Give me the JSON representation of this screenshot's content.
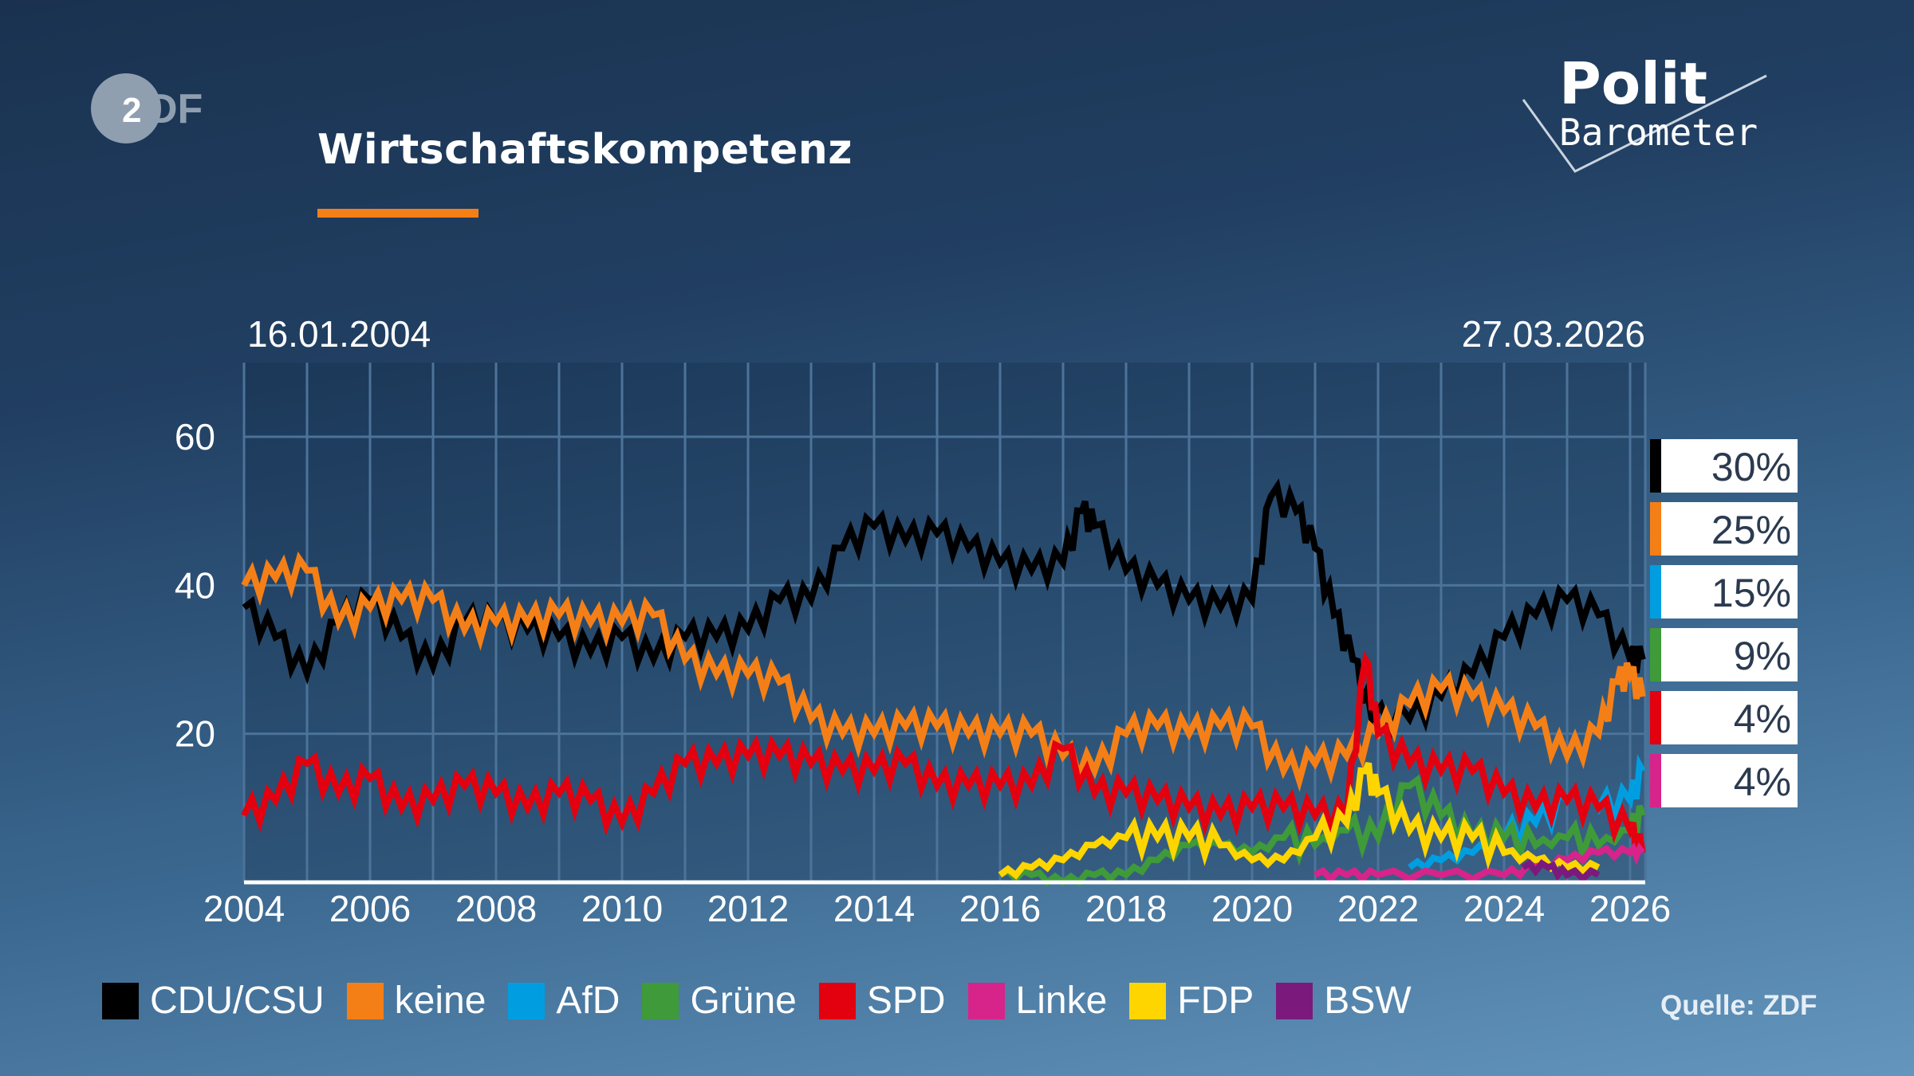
{
  "header": {
    "title": "Wirtschaftskompetenz",
    "brand": "ZDF",
    "program_logo": "PolitBarometer",
    "accent": "#f57f17"
  },
  "dates": {
    "start": "16.01.2004",
    "end": "27.03.2026"
  },
  "latest_values": [
    {
      "party": "CDU/CSU",
      "value": "30%",
      "color": "#000000"
    },
    {
      "party": "keine",
      "value": "25%",
      "color": "#f57f17"
    },
    {
      "party": "AfD",
      "value": "15%",
      "color": "#009ee0"
    },
    {
      "party": "Grüne",
      "value": "9%",
      "color": "#3f9a3a"
    },
    {
      "party": "SPD",
      "value": "4%",
      "color": "#e3000f"
    },
    {
      "party": "Linke",
      "value": "4%",
      "color": "#d6248a"
    }
  ],
  "source": "Quelle: ZDF",
  "chart_data": {
    "type": "line",
    "title": "Wirtschaftskompetenz",
    "xlabel": "",
    "ylabel": "",
    "xlim": [
      2004,
      2026.25
    ],
    "ylim": [
      0,
      75
    ],
    "xticks": [
      "2004",
      "2006",
      "2008",
      "2010",
      "2012",
      "2014",
      "2016",
      "2018",
      "2020",
      "2022",
      "2024",
      "2026"
    ],
    "yticks": [
      "20",
      "40",
      "60"
    ],
    "grid": true,
    "legend": "bottom",
    "series": [
      {
        "name": "CDU/CSU",
        "color": "#000000",
        "x": [
          2004,
          2004.5,
          2005,
          2005.5,
          2006,
          2006.5,
          2007,
          2007.5,
          2008,
          2008.5,
          2009,
          2009.5,
          2010,
          2010.5,
          2011,
          2011.5,
          2012,
          2012.5,
          2013,
          2013.5,
          2014,
          2014.5,
          2015,
          2015.5,
          2016,
          2016.5,
          2017,
          2017.3,
          2017.5,
          2018,
          2018.5,
          2019,
          2019.5,
          2020,
          2020.3,
          2020.7,
          2021,
          2021.3,
          2021.6,
          2021.9,
          2022.5,
          2023,
          2023.5,
          2024,
          2024.5,
          2025,
          2025.5,
          2026,
          2026.2
        ],
        "y": [
          37,
          33,
          28,
          35,
          38,
          33,
          29,
          35,
          35,
          34,
          33,
          31,
          33,
          30,
          33,
          33,
          34,
          38,
          38,
          45,
          48,
          46,
          47,
          45,
          43,
          42,
          43,
          50,
          48,
          42,
          40,
          38,
          37,
          38,
          52,
          50,
          45,
          36,
          30,
          22,
          22,
          25,
          28,
          33,
          36,
          38,
          36,
          30,
          30
        ]
      },
      {
        "name": "keine",
        "color": "#f57f17",
        "x": [
          2004,
          2004.5,
          2005,
          2005.5,
          2006,
          2006.5,
          2007,
          2007.5,
          2008,
          2008.5,
          2009,
          2009.5,
          2010,
          2010.5,
          2011,
          2011.5,
          2012,
          2012.5,
          2013,
          2013.5,
          2014,
          2014.5,
          2015,
          2015.5,
          2016,
          2016.5,
          2017,
          2017.5,
          2018,
          2018.5,
          2019,
          2019.5,
          2020,
          2020.5,
          2021,
          2021.5,
          2022,
          2022.5,
          2023,
          2023.5,
          2024,
          2024.5,
          2025,
          2025.5,
          2025.8,
          2026,
          2026.2
        ],
        "y": [
          40,
          41,
          42,
          35,
          37,
          38,
          38,
          34,
          35,
          35,
          36,
          35,
          35,
          36,
          30,
          28,
          28,
          27,
          22,
          20,
          20,
          21,
          21,
          20,
          20,
          20,
          17,
          15,
          20,
          21,
          20,
          21,
          21,
          15,
          16,
          17,
          20,
          24,
          26,
          25,
          23,
          21,
          17,
          20,
          27,
          28,
          25
        ]
      },
      {
        "name": "AfD",
        "color": "#009ee0",
        "x": [
          2022.5,
          2023,
          2023.5,
          2024,
          2024.5,
          2025,
          2025.5,
          2026,
          2026.2
        ],
        "y": [
          2,
          3,
          4,
          6,
          8,
          11,
          10,
          11,
          15
        ]
      },
      {
        "name": "Grüne",
        "color": "#3f9a3a",
        "x": [
          2016,
          2016.5,
          2017,
          2017.5,
          2018,
          2018.5,
          2019,
          2019.5,
          2020,
          2020.5,
          2021,
          2021.5,
          2022,
          2022.5,
          2023,
          2023.5,
          2024,
          2024.5,
          2025,
          2025.5,
          2026,
          2026.2
        ],
        "y": [
          1,
          1,
          0,
          1,
          1,
          3,
          5,
          5,
          4,
          6,
          5,
          7,
          6,
          13,
          9,
          6,
          6,
          5,
          6,
          5,
          7,
          9
        ]
      },
      {
        "name": "SPD",
        "color": "#e3000f",
        "x": [
          2004,
          2004.5,
          2005,
          2005.5,
          2006,
          2006.5,
          2007,
          2007.5,
          2008,
          2008.5,
          2009,
          2009.5,
          2010,
          2010.5,
          2011,
          2011.5,
          2012,
          2012.5,
          2013,
          2013.5,
          2014,
          2014.5,
          2015,
          2015.5,
          2016,
          2016.5,
          2017,
          2017.5,
          2018,
          2018.5,
          2019,
          2019.5,
          2020,
          2020.5,
          2021,
          2021.5,
          2021.8,
          2022,
          2022.5,
          2023,
          2023.5,
          2024,
          2024.5,
          2025,
          2025.5,
          2026,
          2026.2
        ],
        "y": [
          9,
          11,
          16,
          12,
          14,
          10,
          11,
          13,
          12,
          10,
          12,
          11,
          8,
          12,
          16,
          16,
          17,
          17,
          16,
          15,
          15,
          16,
          13,
          13,
          13,
          13,
          18,
          12,
          12,
          11,
          10,
          9,
          10,
          10,
          9,
          9,
          30,
          20,
          16,
          15,
          15,
          12,
          10,
          11,
          10,
          7,
          4
        ]
      },
      {
        "name": "Linke",
        "color": "#d6248a",
        "x": [
          2021,
          2021.5,
          2022,
          2023,
          2024,
          2024.5,
          2025,
          2025.5,
          2026,
          2026.2
        ],
        "y": [
          1,
          1,
          1,
          1,
          1,
          2,
          3,
          4,
          4,
          4
        ]
      },
      {
        "name": "FDP",
        "color": "#ffd500",
        "x": [
          2016,
          2016.5,
          2017,
          2017.5,
          2018,
          2018.5,
          2019,
          2019.5,
          2020,
          2020.5,
          2021,
          2021.5,
          2021.8,
          2022,
          2022.5,
          2023,
          2023.5,
          2024,
          2024.5,
          2025,
          2025.5
        ],
        "y": [
          1,
          2,
          3,
          5,
          6,
          6,
          6,
          5,
          3,
          3,
          6,
          8,
          15,
          12,
          7,
          6,
          6,
          4,
          3,
          2,
          2
        ]
      },
      {
        "name": "BSW",
        "color": "#7b1a7c",
        "x": [
          2024.3,
          2024.7,
          2025,
          2025.5
        ],
        "y": [
          2,
          2,
          1,
          1
        ]
      }
    ]
  }
}
